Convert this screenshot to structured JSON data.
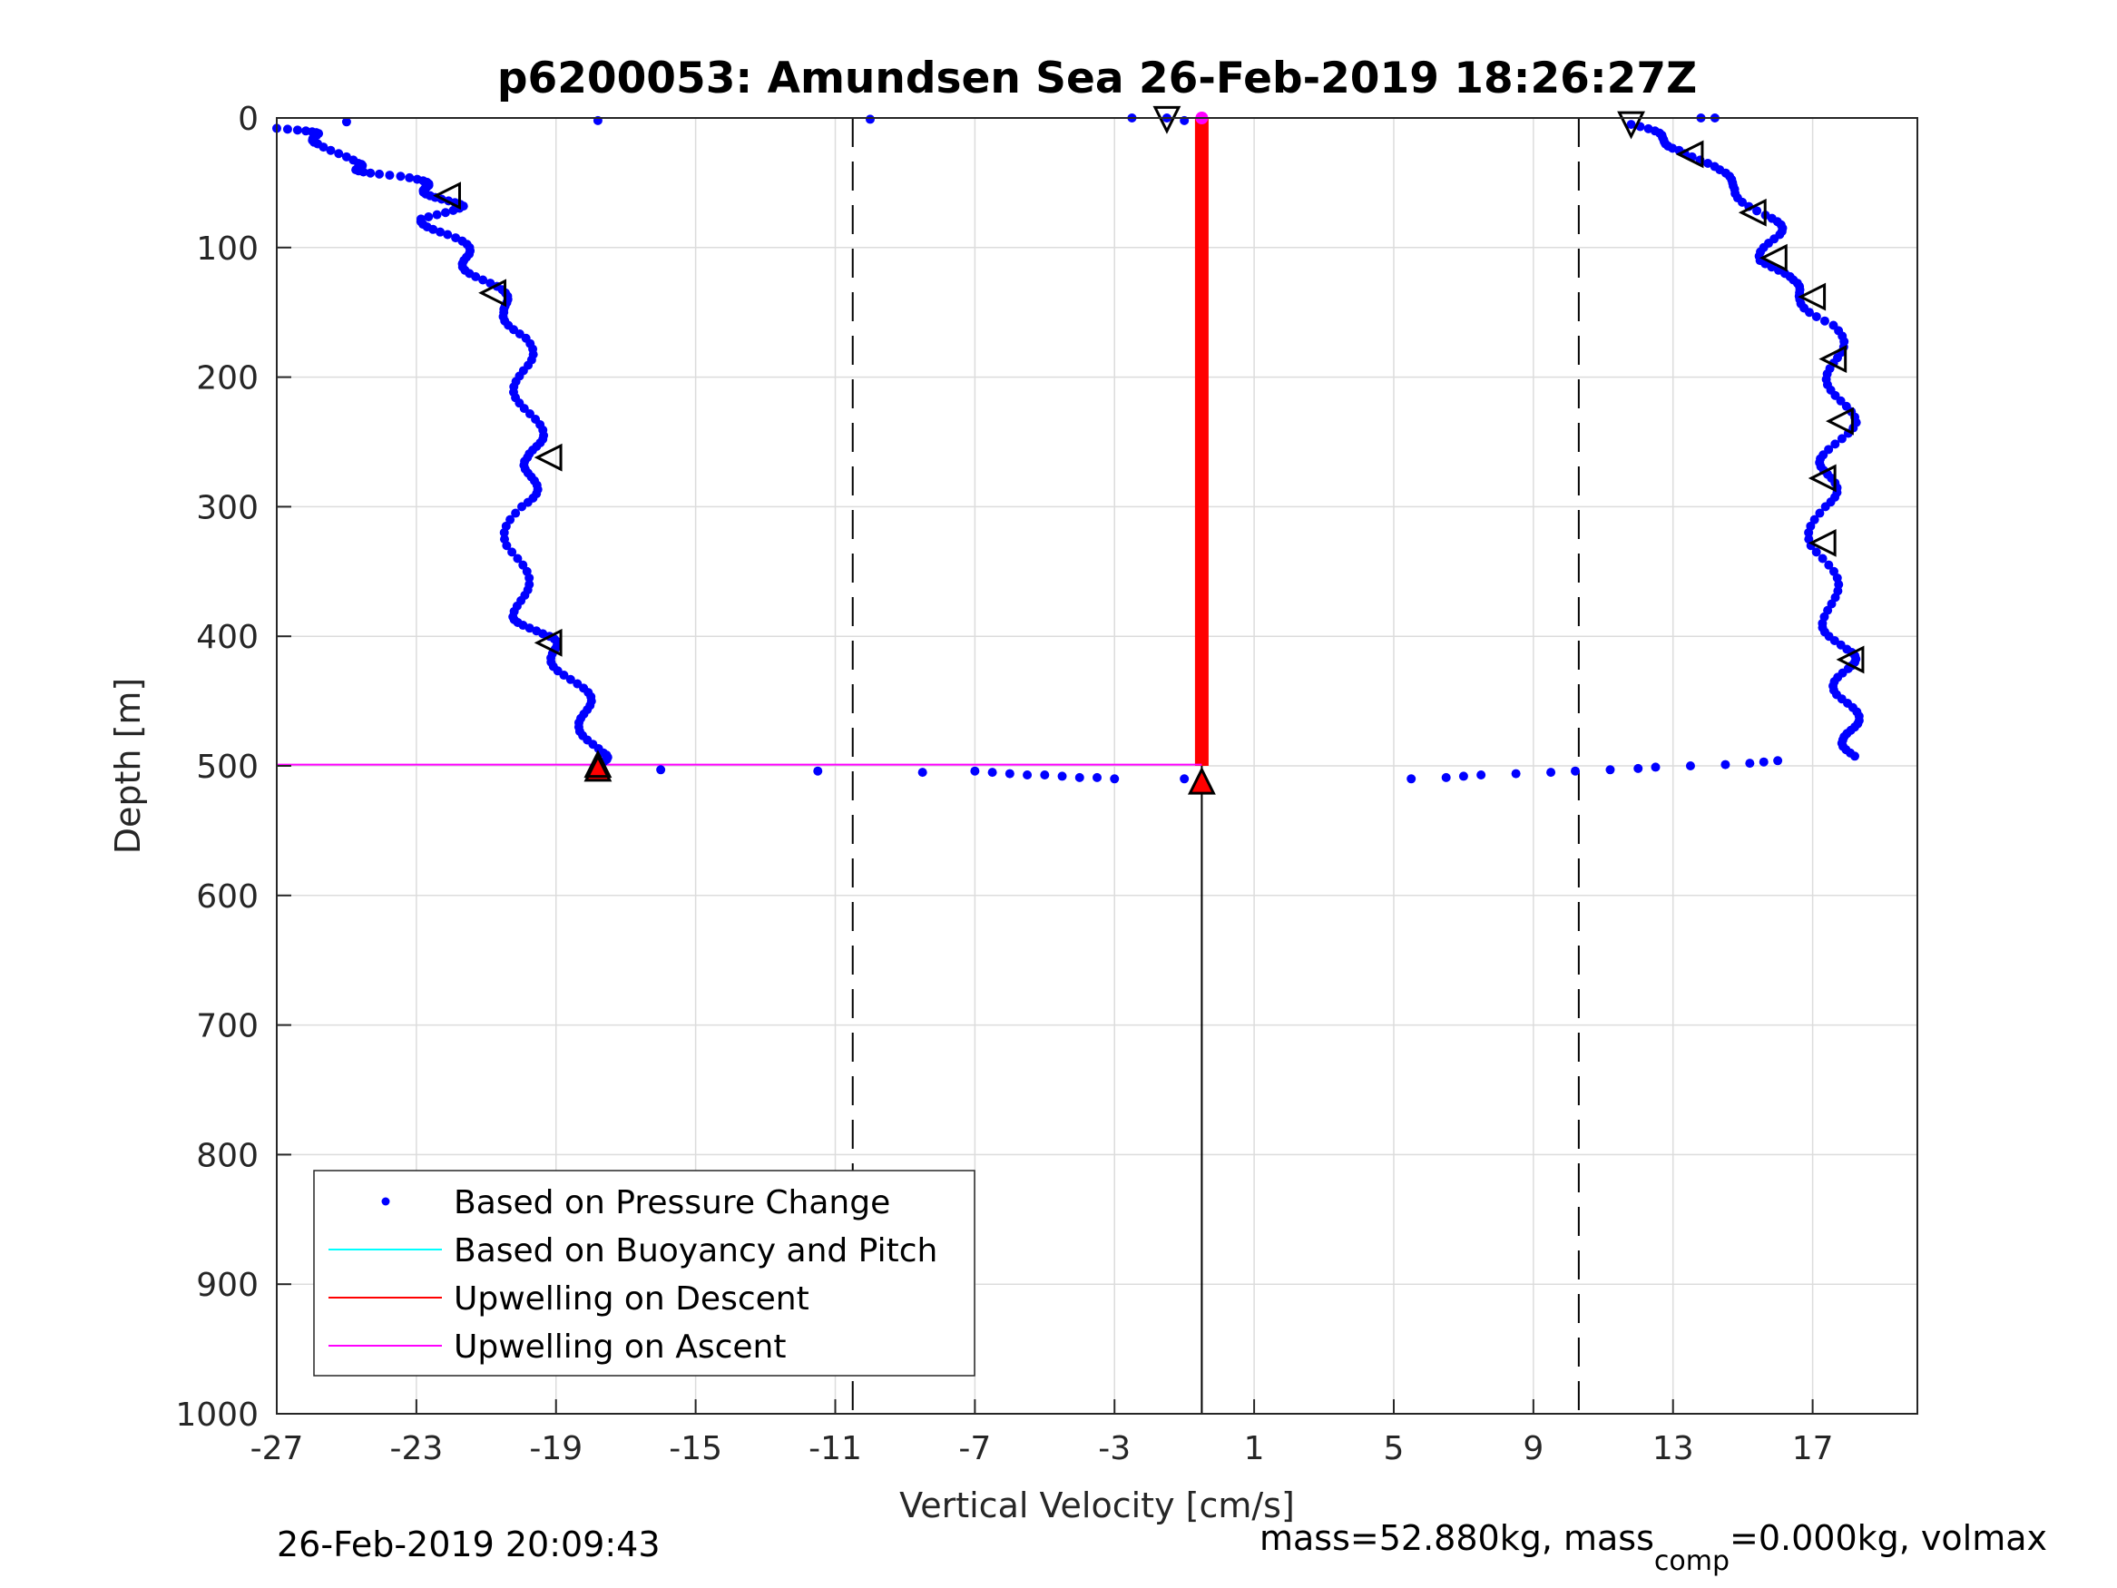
{
  "chart_data": {
    "type": "scatter",
    "title": "p6200053: Amundsen Sea 26-Feb-2019 18:26:27Z",
    "xlabel": "Vertical Velocity [cm/s]",
    "ylabel": "Depth [m]",
    "xlim": [
      -27,
      20
    ],
    "ylim": [
      0,
      1000
    ],
    "y_reversed": true,
    "grid": true,
    "xticks": [
      -27,
      -23,
      -19,
      -15,
      -11,
      -7,
      -3,
      1,
      5,
      9,
      13,
      17
    ],
    "yticks": [
      0,
      100,
      200,
      300,
      400,
      500,
      600,
      700,
      800,
      900,
      1000
    ],
    "legend": {
      "placement": "bottom-left",
      "entries": [
        {
          "label": "Based on Pressure Change",
          "color": "#0000ff",
          "marker": "dot"
        },
        {
          "label": "Based on Buoyancy and Pitch",
          "color": "#00ffff",
          "marker": "line"
        },
        {
          "label": "Upwelling on Descent",
          "color": "#ff0000",
          "marker": "line"
        },
        {
          "label": "Upwelling on Ascent",
          "color": "#ff00ff",
          "marker": "line"
        }
      ]
    },
    "reference_lines": {
      "dashed_x": [
        -10.5,
        10.3
      ],
      "solid_x": [
        -0.5
      ]
    },
    "series": [
      {
        "name": "Based on Pressure Change",
        "color": "#0000ff",
        "descent_profile": [
          [
            -27.0,
            8
          ],
          [
            -26.0,
            12
          ],
          [
            -25.5,
            20
          ],
          [
            -25.0,
            35
          ],
          [
            -24.5,
            40
          ],
          [
            -23.5,
            45
          ],
          [
            -22.8,
            52
          ],
          [
            -22.3,
            60
          ],
          [
            -22.0,
            68
          ],
          [
            -22.6,
            78
          ],
          [
            -22.2,
            90
          ],
          [
            -21.6,
            105
          ],
          [
            -21.2,
            120
          ],
          [
            -20.8,
            135
          ],
          [
            -20.2,
            150
          ],
          [
            -20.0,
            170
          ],
          [
            -20.0,
            195
          ],
          [
            -19.8,
            220
          ],
          [
            -19.7,
            245
          ],
          [
            -19.5,
            262
          ],
          [
            -19.8,
            280
          ],
          [
            -20.0,
            300
          ],
          [
            -20.2,
            330
          ],
          [
            -20.1,
            360
          ],
          [
            -19.9,
            385
          ],
          [
            -19.6,
            398
          ],
          [
            -19.0,
            410
          ],
          [
            -18.6,
            430
          ],
          [
            -18.3,
            450
          ],
          [
            -18.0,
            470
          ],
          [
            -17.9,
            490
          ],
          [
            -17.8,
            500
          ]
        ],
        "ascent_profile": [
          [
            11.8,
            5
          ],
          [
            12.5,
            15
          ],
          [
            13.5,
            25
          ],
          [
            14.0,
            40
          ],
          [
            15.0,
            55
          ],
          [
            15.6,
            75
          ],
          [
            15.9,
            90
          ],
          [
            15.8,
            110
          ],
          [
            16.1,
            125
          ],
          [
            16.9,
            140
          ],
          [
            17.5,
            160
          ],
          [
            17.6,
            185
          ],
          [
            17.8,
            210
          ],
          [
            17.9,
            235
          ],
          [
            17.6,
            260
          ],
          [
            17.4,
            278
          ],
          [
            17.3,
            300
          ],
          [
            17.2,
            330
          ],
          [
            17.4,
            360
          ],
          [
            17.6,
            390
          ],
          [
            17.8,
            410
          ],
          [
            18.0,
            425
          ],
          [
            17.9,
            445
          ],
          [
            18.0,
            465
          ],
          [
            18.2,
            480
          ],
          [
            18.1,
            495
          ]
        ],
        "surface_points": [
          [
            -25.0,
            3
          ],
          [
            -17.8,
            2
          ],
          [
            -10.0,
            1
          ],
          [
            -2.5,
            0
          ],
          [
            -1.5,
            0
          ],
          [
            -1.0,
            2
          ],
          [
            13.8,
            0
          ],
          [
            14.2,
            0
          ]
        ],
        "bottom_points": [
          [
            -16.0,
            503
          ],
          [
            -11.5,
            504
          ],
          [
            -8.5,
            505
          ],
          [
            -7.0,
            504
          ],
          [
            -6.5,
            505
          ],
          [
            -6.0,
            506
          ],
          [
            -5.5,
            507
          ],
          [
            -5.0,
            507
          ],
          [
            -4.5,
            508
          ],
          [
            -4.0,
            509
          ],
          [
            -3.5,
            509
          ],
          [
            -3.0,
            510
          ],
          [
            -1.0,
            510
          ],
          [
            5.5,
            510
          ],
          [
            6.5,
            509
          ],
          [
            7.0,
            508
          ],
          [
            7.5,
            507
          ],
          [
            8.5,
            506
          ],
          [
            9.5,
            505
          ],
          [
            10.2,
            504
          ],
          [
            11.2,
            503
          ],
          [
            12.0,
            502
          ],
          [
            12.5,
            501
          ],
          [
            13.5,
            500
          ],
          [
            14.5,
            499
          ],
          [
            15.2,
            498
          ],
          [
            15.6,
            497
          ],
          [
            16.0,
            496
          ]
        ]
      },
      {
        "name": "Upwelling on Descent",
        "color": "#ff0000",
        "x": -0.5,
        "depth_range": [
          0,
          500
        ]
      },
      {
        "name": "Upwelling on Ascent",
        "color": "#ff00ff",
        "lines": [
          {
            "x": [
              -27,
              -0.5
            ],
            "y": [
              0,
              0
            ]
          },
          {
            "x": [
              -27,
              -0.5
            ],
            "y": [
              499,
              499
            ]
          }
        ]
      }
    ],
    "triangle_markers": {
      "open_down": [
        [
          -1.5,
          1
        ],
        [
          11.8,
          5
        ]
      ],
      "open_left": [
        [
          -22.1,
          60
        ],
        [
          -20.8,
          135
        ],
        [
          -19.2,
          262
        ],
        [
          -19.2,
          405
        ],
        [
          13.5,
          28
        ],
        [
          15.3,
          73
        ],
        [
          15.9,
          108
        ],
        [
          17.0,
          138
        ],
        [
          17.6,
          186
        ],
        [
          17.8,
          234
        ],
        [
          17.3,
          278
        ],
        [
          17.3,
          328
        ],
        [
          18.1,
          418
        ]
      ],
      "filled_up": [
        [
          -0.5,
          512
        ],
        [
          -17.8,
          502
        ]
      ],
      "open_up": [
        [
          -17.8,
          499
        ]
      ]
    },
    "timestamp_footer": "26-Feb-2019 20:09:43",
    "mass_footer": {
      "prefix": "mass=52.880kg, mass",
      "subscript": "comp",
      "suffix": "=0.000kg, volmax"
    }
  }
}
